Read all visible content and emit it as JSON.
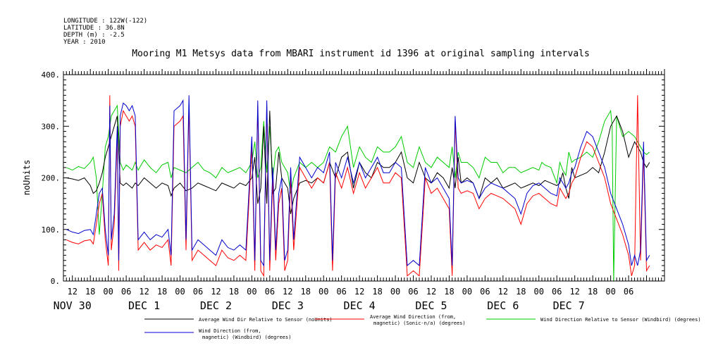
{
  "header": {
    "longitude": "LONGITUDE : 122W(-122)",
    "latitude": "LATITUDE : 36.8N",
    "depth": "DEPTH (m) : -2.5",
    "year": "YEAR : 2010"
  },
  "chart_data": {
    "type": "line",
    "title": "Mooring M1 Metsys data from MBARI instrument id 1396 at original sampling intervals",
    "ylabel": "noUnits",
    "ylim": [
      0,
      400
    ],
    "yticks": [
      {
        "value": 0,
        "label": "0."
      },
      {
        "value": 100,
        "label": "100."
      },
      {
        "value": 200,
        "label": "200."
      },
      {
        "value": 300,
        "label": "300."
      },
      {
        "value": 400,
        "label": "400."
      }
    ],
    "xlim_hours": [
      -15,
      186
    ],
    "hour_ticks": [
      {
        "t": -12,
        "label": "12"
      },
      {
        "t": -6,
        "label": "18"
      },
      {
        "t": 0,
        "label": "00"
      },
      {
        "t": 6,
        "label": "06"
      },
      {
        "t": 12,
        "label": "12"
      },
      {
        "t": 18,
        "label": "18"
      },
      {
        "t": 24,
        "label": "00"
      },
      {
        "t": 30,
        "label": "06"
      },
      {
        "t": 36,
        "label": "12"
      },
      {
        "t": 42,
        "label": "18"
      },
      {
        "t": 48,
        "label": "00"
      },
      {
        "t": 54,
        "label": "06"
      },
      {
        "t": 60,
        "label": "12"
      },
      {
        "t": 66,
        "label": "18"
      },
      {
        "t": 72,
        "label": "00"
      },
      {
        "t": 78,
        "label": "06"
      },
      {
        "t": 84,
        "label": "12"
      },
      {
        "t": 90,
        "label": "18"
      },
      {
        "t": 96,
        "label": "00"
      },
      {
        "t": 102,
        "label": "06"
      },
      {
        "t": 108,
        "label": "12"
      },
      {
        "t": 114,
        "label": "18"
      },
      {
        "t": 120,
        "label": "00"
      },
      {
        "t": 126,
        "label": "06"
      },
      {
        "t": 132,
        "label": "12"
      },
      {
        "t": 138,
        "label": "18"
      },
      {
        "t": 144,
        "label": "00"
      },
      {
        "t": 150,
        "label": "06"
      },
      {
        "t": 156,
        "label": "12"
      },
      {
        "t": 162,
        "label": "18"
      },
      {
        "t": 168,
        "label": "00"
      },
      {
        "t": 174,
        "label": "06"
      }
    ],
    "day_labels": [
      {
        "t": -12,
        "label": "NOV 30"
      },
      {
        "t": 12,
        "label": "DEC  1"
      },
      {
        "t": 36,
        "label": "DEC  2"
      },
      {
        "t": 60,
        "label": "DEC  3"
      },
      {
        "t": 84,
        "label": "DEC  4"
      },
      {
        "t": 108,
        "label": "DEC  5"
      },
      {
        "t": 132,
        "label": "DEC  6"
      },
      {
        "t": 154,
        "label": "DEC  7"
      }
    ],
    "series": [
      {
        "name": "Average Wind Dir Relative to Sensor (noUnits)",
        "color": "#000000",
        "x": [
          -14,
          -12,
          -10,
          -8,
          -6,
          -5,
          -4,
          -3,
          -2,
          -1,
          0,
          1,
          2,
          3,
          4,
          5,
          6,
          7,
          8,
          9,
          10,
          12,
          14,
          16,
          18,
          20,
          21,
          22,
          24,
          26,
          28,
          30,
          32,
          34,
          36,
          38,
          40,
          42,
          44,
          46,
          48,
          49,
          50,
          51,
          52,
          53,
          54,
          55,
          56,
          57,
          58,
          59,
          60,
          61,
          62,
          64,
          66,
          68,
          70,
          72,
          74,
          76,
          78,
          80,
          82,
          84,
          86,
          88,
          90,
          92,
          94,
          96,
          98,
          100,
          102,
          104,
          106,
          108,
          110,
          112,
          114,
          115,
          116,
          117,
          118,
          120,
          122,
          124,
          126,
          128,
          130,
          132,
          134,
          136,
          138,
          140,
          142,
          144,
          146,
          148,
          150,
          151,
          152,
          153,
          154,
          155,
          156,
          158,
          160,
          162,
          164,
          166,
          168,
          170,
          172,
          174,
          176,
          177,
          178,
          179,
          180,
          181
        ],
        "y": [
          200,
          198,
          195,
          200,
          185,
          170,
          175,
          190,
          210,
          240,
          260,
          280,
          300,
          320,
          190,
          185,
          190,
          185,
          180,
          190,
          185,
          200,
          190,
          180,
          190,
          185,
          165,
          180,
          190,
          175,
          180,
          190,
          185,
          180,
          175,
          190,
          185,
          180,
          190,
          185,
          200,
          240,
          150,
          180,
          300,
          150,
          330,
          170,
          180,
          250,
          200,
          190,
          180,
          130,
          160,
          190,
          195,
          190,
          200,
          190,
          230,
          200,
          240,
          250,
          180,
          230,
          210,
          200,
          230,
          220,
          220,
          230,
          250,
          200,
          190,
          230,
          200,
          190,
          210,
          200,
          180,
          220,
          180,
          240,
          190,
          200,
          190,
          160,
          200,
          190,
          200,
          180,
          185,
          190,
          180,
          185,
          190,
          185,
          195,
          190,
          185,
          190,
          210,
          180,
          160,
          220,
          200,
          205,
          210,
          220,
          210,
          250,
          300,
          320,
          290,
          240,
          270,
          260,
          250,
          230,
          220,
          230
        ]
      },
      {
        "name": "Average Wind Direction (from, magnetic) (Sonic-n/a) (degrees)",
        "color": "#ff0000",
        "x": [
          -14,
          -12,
          -10,
          -8,
          -6,
          -5,
          -4,
          -3,
          -2,
          -1,
          0,
          0.5,
          1,
          2,
          3,
          3.5,
          4,
          5,
          6,
          7,
          8,
          9,
          10,
          12,
          14,
          16,
          18,
          20,
          21,
          22,
          24,
          25,
          26,
          27,
          28,
          30,
          32,
          34,
          36,
          38,
          40,
          42,
          44,
          46,
          48,
          49,
          50,
          51,
          52,
          53,
          54,
          55,
          56,
          57,
          58,
          59,
          60,
          61,
          62,
          64,
          66,
          68,
          70,
          72,
          74,
          75,
          76,
          78,
          80,
          82,
          84,
          86,
          88,
          90,
          92,
          94,
          96,
          98,
          100,
          102,
          104,
          106,
          108,
          110,
          112,
          114,
          115,
          116,
          117,
          118,
          120,
          122,
          124,
          126,
          128,
          130,
          132,
          134,
          136,
          138,
          140,
          142,
          144,
          146,
          148,
          150,
          151,
          152,
          153,
          154,
          155,
          156,
          158,
          160,
          162,
          164,
          166,
          168,
          170,
          172,
          174,
          175,
          176,
          177,
          178,
          179,
          180,
          181
        ],
        "y": [
          80,
          75,
          72,
          78,
          80,
          72,
          110,
          150,
          170,
          80,
          30,
          360,
          60,
          110,
          280,
          20,
          300,
          330,
          320,
          310,
          320,
          300,
          60,
          75,
          60,
          70,
          65,
          80,
          30,
          300,
          310,
          320,
          60,
          340,
          40,
          60,
          50,
          40,
          30,
          60,
          45,
          40,
          50,
          40,
          260,
          20,
          340,
          20,
          10,
          340,
          20,
          200,
          40,
          150,
          180,
          20,
          40,
          200,
          60,
          220,
          200,
          180,
          200,
          190,
          230,
          20,
          210,
          180,
          220,
          170,
          210,
          180,
          200,
          220,
          190,
          190,
          210,
          200,
          10,
          20,
          10,
          200,
          170,
          180,
          160,
          140,
          10,
          310,
          180,
          170,
          175,
          170,
          140,
          160,
          170,
          165,
          160,
          150,
          140,
          110,
          150,
          165,
          170,
          160,
          150,
          145,
          180,
          170,
          160,
          170,
          190,
          200,
          240,
          270,
          260,
          230,
          200,
          150,
          120,
          90,
          50,
          10,
          30,
          360,
          40,
          250,
          20,
          30
        ]
      },
      {
        "name": "Wind Direction Relative to Sensor (Windbird) (degrees)",
        "color": "#00cc00",
        "x": [
          -14,
          -12,
          -10,
          -8,
          -6,
          -5,
          -4,
          -3,
          -2,
          -1,
          0,
          1,
          2,
          3,
          4,
          5,
          6,
          7,
          8,
          9,
          10,
          12,
          14,
          16,
          18,
          20,
          21,
          22,
          24,
          26,
          28,
          30,
          32,
          34,
          36,
          38,
          40,
          42,
          44,
          46,
          48,
          49,
          50,
          51,
          52,
          53,
          54,
          55,
          56,
          57,
          58,
          59,
          60,
          61,
          62,
          64,
          66,
          68,
          70,
          72,
          74,
          76,
          78,
          80,
          82,
          84,
          86,
          88,
          90,
          92,
          94,
          96,
          98,
          100,
          102,
          104,
          106,
          108,
          110,
          112,
          114,
          115,
          116,
          117,
          118,
          120,
          122,
          124,
          126,
          128,
          130,
          132,
          134,
          136,
          138,
          140,
          142,
          144,
          145,
          146,
          148,
          150,
          151,
          152,
          153,
          154,
          155,
          156,
          158,
          160,
          162,
          164,
          166,
          168,
          168.5,
          169,
          170,
          172,
          174,
          176,
          177,
          178,
          179,
          180,
          181
        ],
        "y": [
          220,
          215,
          222,
          218,
          230,
          240,
          200,
          90,
          170,
          260,
          280,
          320,
          330,
          340,
          230,
          215,
          225,
          220,
          215,
          230,
          215,
          235,
          220,
          210,
          225,
          230,
          200,
          220,
          215,
          210,
          220,
          230,
          215,
          210,
          200,
          220,
          210,
          215,
          220,
          210,
          230,
          270,
          200,
          220,
          310,
          210,
          300,
          200,
          250,
          260,
          230,
          220,
          210,
          170,
          200,
          230,
          220,
          230,
          220,
          230,
          260,
          250,
          280,
          300,
          220,
          260,
          240,
          230,
          260,
          250,
          250,
          260,
          280,
          230,
          220,
          260,
          230,
          220,
          240,
          230,
          220,
          260,
          200,
          250,
          230,
          230,
          220,
          200,
          240,
          230,
          230,
          210,
          220,
          220,
          210,
          215,
          220,
          215,
          230,
          225,
          220,
          190,
          230,
          215,
          205,
          250,
          230,
          235,
          240,
          250,
          240,
          270,
          310,
          330,
          300,
          0,
          320,
          280,
          290,
          280,
          270,
          260,
          250,
          245,
          250
        ]
      },
      {
        "name": "Wind Direction (from, magnetic) (Windbird) (degrees)",
        "color": "#0000cc",
        "x": [
          -14,
          -12,
          -10,
          -8,
          -6,
          -5,
          -4,
          -3,
          -2,
          -1,
          0,
          0.5,
          1,
          2,
          3,
          3.5,
          4,
          5,
          6,
          7,
          8,
          9,
          10,
          12,
          14,
          16,
          18,
          20,
          21,
          22,
          24,
          25,
          26,
          27,
          28,
          30,
          32,
          34,
          36,
          38,
          40,
          42,
          44,
          46,
          48,
          49,
          50,
          51,
          52,
          53,
          54,
          55,
          56,
          57,
          58,
          59,
          60,
          61,
          62,
          64,
          66,
          68,
          70,
          72,
          74,
          75,
          76,
          78,
          80,
          82,
          84,
          86,
          88,
          90,
          92,
          94,
          96,
          98,
          100,
          102,
          104,
          106,
          108,
          110,
          112,
          114,
          115,
          116,
          117,
          118,
          120,
          122,
          124,
          126,
          128,
          130,
          132,
          134,
          136,
          138,
          140,
          142,
          144,
          146,
          148,
          150,
          151,
          152,
          153,
          154,
          155,
          156,
          158,
          160,
          162,
          164,
          166,
          168,
          170,
          172,
          174,
          175,
          176,
          177,
          178,
          179,
          180,
          181
        ],
        "y": [
          100,
          95,
          92,
          98,
          100,
          90,
          130,
          170,
          180,
          100,
          50,
          340,
          80,
          130,
          300,
          40,
          320,
          345,
          340,
          330,
          340,
          320,
          80,
          95,
          80,
          90,
          85,
          100,
          50,
          330,
          340,
          350,
          80,
          360,
          60,
          80,
          70,
          60,
          50,
          80,
          65,
          60,
          70,
          60,
          280,
          40,
          350,
          40,
          30,
          350,
          40,
          220,
          60,
          170,
          200,
          40,
          60,
          220,
          80,
          240,
          220,
          200,
          220,
          210,
          250,
          40,
          230,
          200,
          240,
          190,
          230,
          200,
          220,
          240,
          210,
          210,
          230,
          220,
          30,
          40,
          30,
          220,
          190,
          200,
          180,
          160,
          30,
          320,
          200,
          190,
          195,
          190,
          160,
          180,
          190,
          185,
          180,
          170,
          160,
          130,
          170,
          185,
          190,
          180,
          170,
          165,
          200,
          190,
          180,
          190,
          210,
          220,
          260,
          290,
          280,
          250,
          220,
          170,
          140,
          110,
          70,
          30,
          50,
          30,
          60,
          270,
          40,
          50
        ]
      }
    ]
  }
}
